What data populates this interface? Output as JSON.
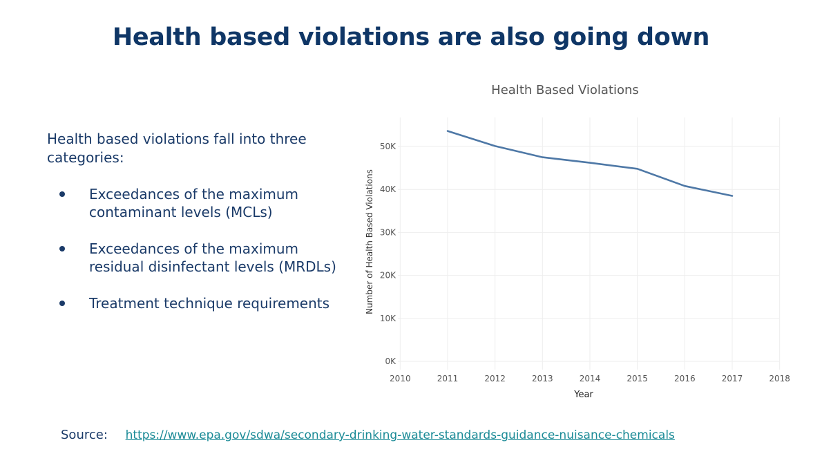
{
  "slide": {
    "title": "Health based violations are also going down",
    "intro": "Health based violations fall into three categories:",
    "bullets": [
      "Exceedances of the maximum contaminant levels (MCLs)",
      "Exceedances of the maximum residual disinfectant levels (MRDLs)",
      "Treatment technique requirements"
    ],
    "source_label": "Source:",
    "source_link": "https://www.epa.gov/sdwa/secondary-drinking-water-standards-guidance-nuisance-chemicals"
  },
  "colors": {
    "title": "#0f3666",
    "text": "#1a3a68",
    "line": "#4e78a6",
    "link": "#1a8a96",
    "grid": "#eeeeee"
  },
  "chart_data": {
    "type": "line",
    "title": "Health Based Violations",
    "xlabel": "Year",
    "ylabel": "Number of Health Based Violations",
    "xlim": [
      2010,
      2018
    ],
    "ylim": [
      0,
      55000
    ],
    "x_ticks": [
      2010,
      2011,
      2012,
      2013,
      2014,
      2015,
      2016,
      2017,
      2018
    ],
    "y_ticks": [
      0,
      10000,
      20000,
      30000,
      40000,
      50000
    ],
    "y_tick_labels": [
      "0K",
      "10K",
      "20K",
      "30K",
      "40K",
      "50K"
    ],
    "grid": true,
    "series": [
      {
        "x": [
          2011,
          2012,
          2013,
          2014,
          2015,
          2016,
          2017
        ],
        "values": [
          53600,
          50100,
          47500,
          46200,
          44800,
          40800,
          38500
        ]
      }
    ]
  }
}
